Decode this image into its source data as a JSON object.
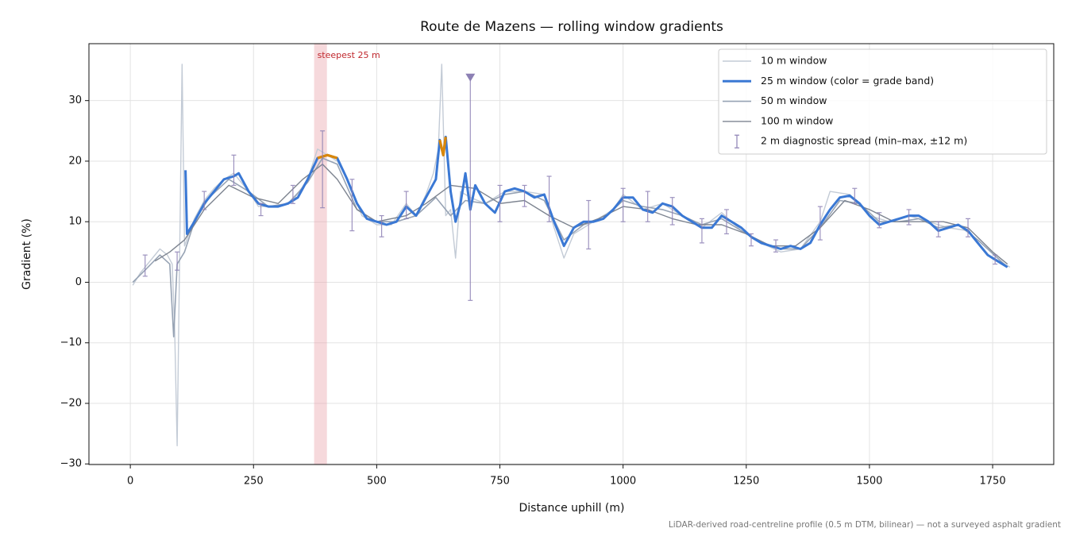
{
  "chart_data": {
    "type": "line",
    "title": "Route de Mazens — rolling window gradients",
    "x_label": "Distance uphill (m)",
    "y_label": "Gradient (%)",
    "footnote": "LiDAR-derived road-centreline profile (0.5 m DTM, bilinear) — not a surveyed asphalt gradient",
    "xlim": [
      -84,
      1874
    ],
    "ylim": [
      -30.1,
      39.4
    ],
    "xticks": [
      0,
      250,
      500,
      750,
      1000,
      1250,
      1500,
      1750
    ],
    "yticks": [
      {
        "value": -30,
        "label": "−30"
      },
      {
        "value": -20,
        "label": "−20"
      },
      {
        "value": -10,
        "label": "−10"
      },
      0,
      10,
      20,
      30
    ],
    "grid": true,
    "legend": "upper right",
    "series": [
      {
        "name": "10 m window",
        "color": "#c3cbd6",
        "x": [
          5,
          20,
          40,
          60,
          75,
          85,
          90,
          95,
          100,
          105,
          110,
          130,
          150,
          170,
          190,
          210,
          240,
          260,
          280,
          300,
          330,
          360,
          380,
          400,
          420,
          440,
          470,
          500,
          530,
          560,
          580,
          600,
          615,
          625,
          632,
          640,
          650,
          660,
          670,
          690,
          720,
          760,
          800,
          840,
          860,
          880,
          900,
          940,
          980,
          1000,
          1040,
          1080,
          1120,
          1160,
          1200,
          1240,
          1280,
          1320,
          1360,
          1400,
          1420,
          1460,
          1500,
          1540,
          1580,
          1620,
          1660,
          1700,
          1740,
          1785
        ],
        "values": [
          -0.5,
          1.5,
          3.5,
          5.5,
          4.5,
          3,
          -8,
          -27,
          4,
          36,
          6,
          10.5,
          13.5,
          15.5,
          17,
          18,
          15,
          12.5,
          12.5,
          12.5,
          13.5,
          17,
          22,
          21,
          20,
          17,
          11,
          9.5,
          9.5,
          13,
          11,
          14.5,
          18,
          22,
          36,
          11,
          12,
          4,
          15,
          14,
          13,
          15,
          15,
          14.5,
          9,
          4,
          8,
          10,
          12,
          14.5,
          12,
          13,
          11,
          9,
          11.5,
          8.5,
          6.5,
          5,
          5.5,
          10,
          15,
          14.5,
          11,
          10,
          11,
          10,
          9,
          8.5,
          4.5,
          2.5
        ]
      },
      {
        "name": "25 m window (color = grade band)",
        "color": "#3a78d4",
        "highlight": {
          "above": 20,
          "color": "#d9870b"
        },
        "x": [
          112,
          115,
          130,
          150,
          170,
          190,
          210,
          220,
          240,
          260,
          280,
          300,
          320,
          340,
          360,
          380,
          400,
          420,
          440,
          460,
          480,
          500,
          520,
          540,
          560,
          580,
          600,
          620,
          628,
          635,
          640,
          650,
          660,
          670,
          680,
          690,
          700,
          720,
          740,
          760,
          780,
          800,
          820,
          840,
          860,
          880,
          900,
          920,
          940,
          960,
          980,
          1000,
          1020,
          1040,
          1060,
          1080,
          1100,
          1120,
          1140,
          1160,
          1180,
          1200,
          1220,
          1240,
          1260,
          1280,
          1300,
          1320,
          1340,
          1360,
          1380,
          1400,
          1420,
          1440,
          1460,
          1480,
          1500,
          1520,
          1540,
          1560,
          1580,
          1600,
          1620,
          1640,
          1660,
          1680,
          1700,
          1720,
          1740,
          1760,
          1780
        ],
        "values": [
          18.5,
          8,
          10,
          13,
          15,
          17,
          17.5,
          18,
          15,
          13,
          12.5,
          12.5,
          13,
          14,
          17,
          20.5,
          21,
          20.5,
          17,
          13,
          10.5,
          10,
          9.5,
          10,
          12.5,
          11,
          14,
          17,
          23.5,
          21,
          24,
          15,
          10,
          13,
          18,
          12,
          16,
          13,
          11.5,
          15,
          15.5,
          15,
          14,
          14.5,
          10,
          6,
          9,
          10,
          10,
          10.5,
          12,
          14,
          14,
          12,
          11.5,
          13,
          12.5,
          11,
          10,
          9,
          9,
          11,
          10,
          9,
          7.5,
          6.5,
          6,
          5.5,
          6,
          5.5,
          6.5,
          9.5,
          12,
          14,
          14.3,
          13,
          11,
          9.5,
          10,
          10.5,
          11,
          11,
          10,
          8.5,
          9,
          9.5,
          8.5,
          6.5,
          4.5,
          3.5,
          2.5
        ]
      },
      {
        "name": "50 m window",
        "color": "#97a3b4",
        "x": [
          5,
          30,
          60,
          80,
          88,
          95,
          110,
          130,
          160,
          200,
          240,
          280,
          320,
          360,
          390,
          420,
          460,
          500,
          540,
          580,
          620,
          650,
          680,
          720,
          760,
          800,
          840,
          880,
          920,
          960,
          1000,
          1040,
          1080,
          1120,
          1160,
          1200,
          1240,
          1280,
          1320,
          1360,
          1400,
          1440,
          1480,
          1520,
          1560,
          1600,
          1640,
          1680,
          1720,
          1780
        ],
        "values": [
          0,
          2,
          4.5,
          3,
          -9,
          3,
          5,
          10,
          14,
          17,
          15,
          12.5,
          13,
          16.5,
          20.5,
          19.5,
          12,
          10,
          10,
          11,
          14,
          11,
          13.5,
          13,
          14.5,
          15,
          13.5,
          7,
          9.5,
          10.5,
          13.5,
          12.5,
          12,
          11,
          9.5,
          10.5,
          8.5,
          6.5,
          5.5,
          5.5,
          9,
          13.5,
          13,
          10,
          10,
          10.5,
          9,
          9.5,
          7,
          2.5
        ]
      },
      {
        "name": "100 m window",
        "color": "#7d8490",
        "x": [
          50,
          80,
          110,
          150,
          200,
          250,
          300,
          350,
          390,
          420,
          460,
          500,
          560,
          600,
          650,
          700,
          750,
          800,
          850,
          900,
          950,
          1000,
          1050,
          1100,
          1150,
          1200,
          1250,
          1300,
          1350,
          1400,
          1450,
          1500,
          1550,
          1600,
          1650,
          1700,
          1750,
          1780
        ],
        "values": [
          3.5,
          5,
          7,
          12,
          16,
          14,
          13,
          17,
          19.5,
          17,
          12,
          10,
          11,
          13,
          16,
          15.5,
          13,
          13.5,
          11,
          9,
          10.5,
          12.5,
          12,
          10.5,
          9.5,
          9.5,
          8,
          6,
          6,
          9,
          13.5,
          12,
          10,
          10,
          10,
          9,
          5,
          3
        ]
      }
    ],
    "errorbars": {
      "name": "2 m diagnostic spread (min–max, ±12 m)",
      "color": "#8c80b4",
      "x": [
        30,
        95,
        150,
        210,
        265,
        330,
        390,
        450,
        510,
        560,
        690,
        750,
        800,
        850,
        930,
        1000,
        1050,
        1100,
        1160,
        1210,
        1260,
        1310,
        1400,
        1470,
        1520,
        1580,
        1640,
        1700,
        1755
      ],
      "low": [
        1,
        2,
        12,
        16,
        11,
        13,
        12.3,
        8.5,
        7.5,
        10.5,
        -3,
        10,
        12.5,
        10,
        5.5,
        10,
        10,
        9.5,
        6.5,
        8,
        6,
        5,
        7,
        13,
        9,
        9.5,
        7.5,
        7.5,
        3
      ],
      "high": [
        4.5,
        5,
        15,
        21,
        13,
        16,
        25,
        17,
        11,
        15,
        34,
        16,
        16,
        17.5,
        13.5,
        15.5,
        15,
        14,
        10.5,
        12,
        8,
        7,
        12.5,
        15.5,
        11.5,
        12,
        10,
        10.5,
        4.5
      ]
    },
    "peak_marker": {
      "x": 690,
      "y": 33.8,
      "color": "#8c80b4"
    },
    "steepest": {
      "label": "steepest 25 m",
      "range": [
        373,
        399
      ],
      "color": "#e8a0a8",
      "label_color": "#c0272d"
    }
  }
}
